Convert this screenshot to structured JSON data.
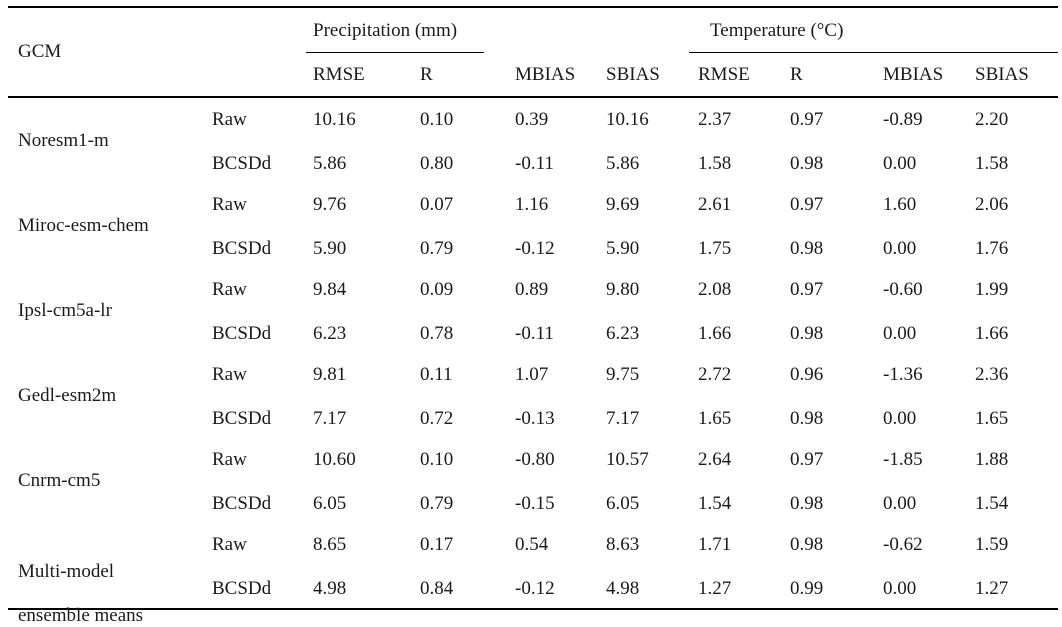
{
  "header": {
    "gcm": "GCM",
    "precip_group": "Precipitation (mm)",
    "temp_group": "Temperature (°C)",
    "metrics": [
      "RMSE",
      "R",
      "MBIAS",
      "SBIAS",
      "RMSE",
      "R",
      "MBIAS",
      "SBIAS"
    ]
  },
  "rows": [
    {
      "gcm": "Noresm1-m",
      "gcm2": "",
      "raw": {
        "label": "Raw",
        "values": [
          "10.16",
          "0.10",
          "0.39",
          "10.16",
          "2.37",
          "0.97",
          "-0.89",
          "2.20"
        ]
      },
      "bc": {
        "label": "BCSDd",
        "values": [
          "5.86",
          "0.80",
          "-0.11",
          "5.86",
          "1.58",
          "0.98",
          "0.00",
          "1.58"
        ]
      }
    },
    {
      "gcm": "Miroc-esm-chem",
      "gcm2": "",
      "raw": {
        "label": "Raw",
        "values": [
          "9.76",
          "0.07",
          "1.16",
          "9.69",
          "2.61",
          "0.97",
          "1.60",
          "2.06"
        ]
      },
      "bc": {
        "label": "BCSDd",
        "values": [
          "5.90",
          "0.79",
          "-0.12",
          "5.90",
          "1.75",
          "0.98",
          "0.00",
          "1.76"
        ]
      }
    },
    {
      "gcm": "Ipsl-cm5a-lr",
      "gcm2": "",
      "raw": {
        "label": "Raw",
        "values": [
          "9.84",
          "0.09",
          "0.89",
          "9.80",
          "2.08",
          "0.97",
          "-0.60",
          "1.99"
        ]
      },
      "bc": {
        "label": "BCSDd",
        "values": [
          "6.23",
          "0.78",
          "-0.11",
          "6.23",
          "1.66",
          "0.98",
          "0.00",
          "1.66"
        ]
      }
    },
    {
      "gcm": "Gedl-esm2m",
      "gcm2": "",
      "raw": {
        "label": "Raw",
        "values": [
          "9.81",
          "0.11",
          "1.07",
          "9.75",
          "2.72",
          "0.96",
          "-1.36",
          "2.36"
        ]
      },
      "bc": {
        "label": "BCSDd",
        "values": [
          "7.17",
          "0.72",
          "-0.13",
          "7.17",
          "1.65",
          "0.98",
          "0.00",
          "1.65"
        ]
      }
    },
    {
      "gcm": "Cnrm-cm5",
      "gcm2": "",
      "raw": {
        "label": "Raw",
        "values": [
          "10.60",
          "0.10",
          "-0.80",
          "10.57",
          "2.64",
          "0.97",
          "-1.85",
          "1.88"
        ]
      },
      "bc": {
        "label": "BCSDd",
        "values": [
          "6.05",
          "0.79",
          "-0.15",
          "6.05",
          "1.54",
          "0.98",
          "0.00",
          "1.54"
        ]
      }
    },
    {
      "gcm": "Multi-model",
      "gcm2": "ensemble means",
      "raw": {
        "label": "Raw",
        "values": [
          "8.65",
          "0.17",
          "0.54",
          "8.63",
          "1.71",
          "0.98",
          "-0.62",
          "1.59"
        ]
      },
      "bc": {
        "label": "BCSDd",
        "values": [
          "4.98",
          "0.84",
          "-0.12",
          "4.98",
          "1.27",
          "0.99",
          "0.00",
          "1.27"
        ]
      }
    }
  ]
}
